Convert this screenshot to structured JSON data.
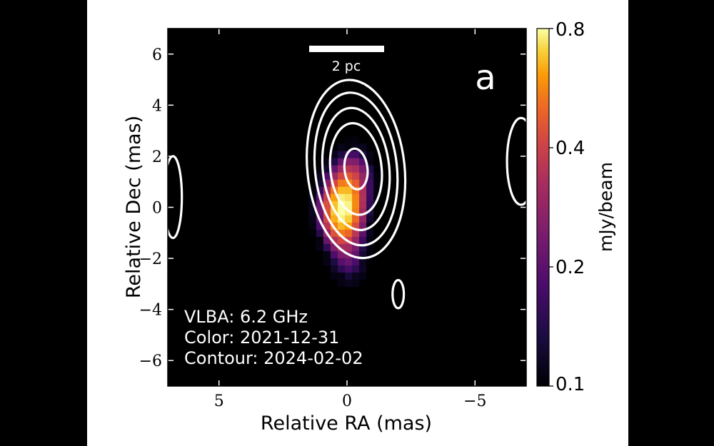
{
  "chart_data": {
    "type": "heatmap",
    "panel_letter": "a",
    "xlabel": "Relative RA (mas)",
    "ylabel": "Relative Dec (mas)",
    "xlim": [
      7,
      -7
    ],
    "ylim": [
      -7,
      7
    ],
    "x_ticks": [
      5,
      0,
      -5
    ],
    "y_ticks": [
      6,
      4,
      2,
      0,
      -2,
      -4,
      -6
    ],
    "scale_bar": {
      "label": "2 pc"
    },
    "annotations": [
      "VLBA: 6.2 GHz",
      "Color: 2021-12-31",
      "Contour: 2024-02-02"
    ],
    "colorbar": {
      "label": "mJy/beam",
      "ticks": [
        0.8,
        0.4,
        0.2,
        0.1
      ],
      "range": [
        0.1,
        0.8
      ],
      "scale": "log",
      "colormap": "inferno"
    },
    "color_source": {
      "components": [
        {
          "ra": 0.2,
          "dec": -0.1,
          "peak": 0.8,
          "sigma_ra": 0.55,
          "sigma_dec": 0.95
        },
        {
          "ra": -0.3,
          "dec": 1.3,
          "peak": 0.22,
          "sigma_ra": 0.5,
          "sigma_dec": 0.8
        },
        {
          "ra": -0.1,
          "dec": -2.2,
          "peak": 0.14,
          "sigma_ra": 0.5,
          "sigma_dec": 0.7
        }
      ]
    },
    "contours": {
      "central": {
        "center": [
          -0.35,
          1.5
        ],
        "levels": [
          {
            "rx": 0.45,
            "ry": 0.8
          },
          {
            "rx": 1.0,
            "ry": 1.8
          },
          {
            "rx": 1.3,
            "ry": 2.4
          },
          {
            "rx": 1.6,
            "ry": 3.0
          },
          {
            "rx": 1.9,
            "ry": 3.5
          }
        ]
      },
      "side": [
        {
          "ra": 6.8,
          "dec": 0.4,
          "rx": 0.35,
          "ry": 1.6
        },
        {
          "ra": -6.8,
          "dec": 1.8,
          "rx": 0.55,
          "ry": 1.7
        },
        {
          "ra": -2.0,
          "dec": -3.4,
          "rx": 0.22,
          "ry": 0.55
        }
      ]
    }
  },
  "colors": {
    "figure_background": "#ffffff",
    "plot_background": "#000000",
    "contour": "#ffffff"
  }
}
